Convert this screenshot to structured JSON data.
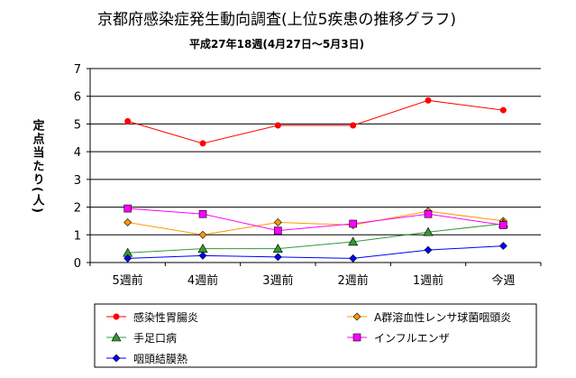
{
  "chart_data": {
    "type": "line",
    "title": "京都府感染症発生動向調査(上位5疾患の推移グラフ)",
    "subtitle": "平成27年18週(4月27日～5月3日)",
    "ylabel": "定点当たり(人)",
    "xlabel": "",
    "categories": [
      "5週前",
      "4週前",
      "3週前",
      "2週前",
      "1週前",
      "今週"
    ],
    "ylim": [
      0,
      7
    ],
    "yticks": [
      0,
      1,
      2,
      3,
      4,
      5,
      6,
      7
    ],
    "grid": true,
    "legend_position": "bottom",
    "series": [
      {
        "name": "感染性胃腸炎",
        "color": "#ff0000",
        "marker": "circle",
        "values": [
          5.1,
          4.3,
          4.95,
          4.95,
          5.85,
          5.5
        ]
      },
      {
        "name": "A群溶血性レンサ球菌咽頭炎",
        "color": "#ff9900",
        "marker": "diamond",
        "values": [
          1.45,
          1.0,
          1.45,
          1.35,
          1.85,
          1.5
        ]
      },
      {
        "name": "手足口病",
        "color": "#339933",
        "marker": "triangle",
        "values": [
          0.35,
          0.5,
          0.5,
          0.75,
          1.1,
          1.4
        ]
      },
      {
        "name": "インフルエンザ",
        "color": "#ff00ff",
        "marker": "square",
        "values": [
          1.95,
          1.75,
          1.15,
          1.4,
          1.75,
          1.35
        ]
      },
      {
        "name": "咽頭結膜熱",
        "color": "#0000ff",
        "marker": "diamond",
        "values": [
          0.15,
          0.25,
          0.2,
          0.15,
          0.45,
          0.6
        ]
      }
    ]
  }
}
